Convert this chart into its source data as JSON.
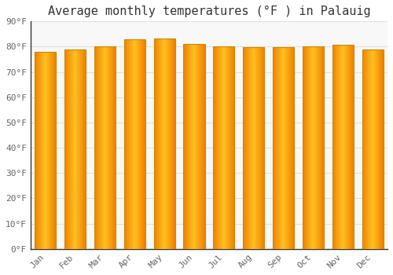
{
  "title": "Average monthly temperatures (°F ) in Palauig",
  "months": [
    "Jan",
    "Feb",
    "Mar",
    "Apr",
    "May",
    "Jun",
    "Jul",
    "Aug",
    "Sep",
    "Oct",
    "Nov",
    "Dec"
  ],
  "values": [
    78.1,
    78.8,
    80.2,
    83.0,
    83.1,
    81.0,
    80.2,
    79.9,
    79.7,
    80.2,
    80.8,
    79.0
  ],
  "bar_color_center": "#FFB800",
  "bar_color_edge": "#F08000",
  "bar_edge_color": "#CC8800",
  "background_color": "#FFFFFF",
  "plot_bg_color": "#F8F8F8",
  "grid_color": "#E0E0E0",
  "spine_color": "#333333",
  "ylim": [
    0,
    90
  ],
  "ytick_step": 10,
  "title_fontsize": 11,
  "tick_fontsize": 8,
  "font_family": "monospace"
}
